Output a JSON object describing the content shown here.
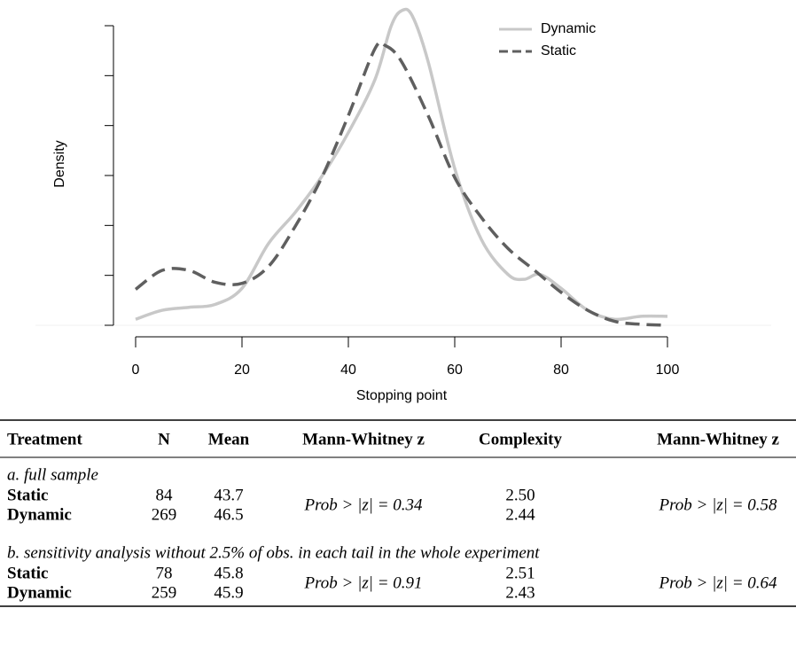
{
  "chart_data": {
    "type": "line",
    "xlabel": "Stopping point",
    "ylabel": "Density",
    "xlim": [
      0,
      100
    ],
    "xticks": [
      0,
      20,
      40,
      60,
      80,
      100
    ],
    "ylim": [
      0,
      0.03
    ],
    "yticks": [
      0,
      0.005,
      0.01,
      0.015,
      0.02,
      0.025,
      0.03
    ],
    "legend": "top-right",
    "series": [
      {
        "name": "Dynamic",
        "color": "#c8c8c8",
        "dash": false,
        "x": [
          0,
          5,
          10,
          15,
          20,
          25,
          30,
          35,
          40,
          45,
          48,
          50,
          52,
          55,
          60,
          65,
          70,
          73,
          76,
          80,
          85,
          90,
          95,
          100
        ],
        "values": [
          0.0006,
          0.0015,
          0.0018,
          0.0021,
          0.0037,
          0.0082,
          0.0113,
          0.0149,
          0.0193,
          0.0246,
          0.0299,
          0.0315,
          0.031,
          0.0264,
          0.0157,
          0.0086,
          0.0051,
          0.0046,
          0.0051,
          0.0037,
          0.0015,
          0.0006,
          0.0009,
          0.0009
        ]
      },
      {
        "name": "Static",
        "color": "#5f5f5f",
        "dash": true,
        "x": [
          0,
          5,
          10,
          15,
          20,
          25,
          30,
          35,
          40,
          45,
          47,
          50,
          55,
          60,
          65,
          70,
          75,
          80,
          85,
          90,
          95,
          100
        ],
        "values": [
          0.0036,
          0.0055,
          0.0055,
          0.0043,
          0.0042,
          0.0059,
          0.0099,
          0.0148,
          0.021,
          0.0277,
          0.028,
          0.0264,
          0.021,
          0.0148,
          0.0108,
          0.0077,
          0.0055,
          0.0033,
          0.0015,
          0.0004,
          0.0001,
          0
        ]
      }
    ]
  },
  "table": {
    "columns": [
      "Treatment",
      "N",
      "Mean",
      "Mann-Whitney z",
      "Complexity",
      "Mann-Whitney z"
    ],
    "sections": [
      {
        "label": "a. full sample",
        "rows": [
          [
            "Static",
            "84",
            "43.7",
            "2.50"
          ],
          [
            "Dynamic",
            "269",
            "46.5",
            "2.44"
          ]
        ],
        "mw_mean": "Prob > |z| = 0.34",
        "mw_complexity": "Prob > |z| = 0.58"
      },
      {
        "label": "b. sensitivity analysis without 2.5% of obs. in each tail in the whole experiment",
        "rows": [
          [
            "Static",
            "78",
            "45.8",
            "2.51"
          ],
          [
            "Dynamic",
            "259",
            "45.9",
            "2.43"
          ]
        ],
        "mw_mean": "Prob > |z| = 0.91",
        "mw_complexity": "Prob > |z| = 0.64"
      }
    ]
  }
}
